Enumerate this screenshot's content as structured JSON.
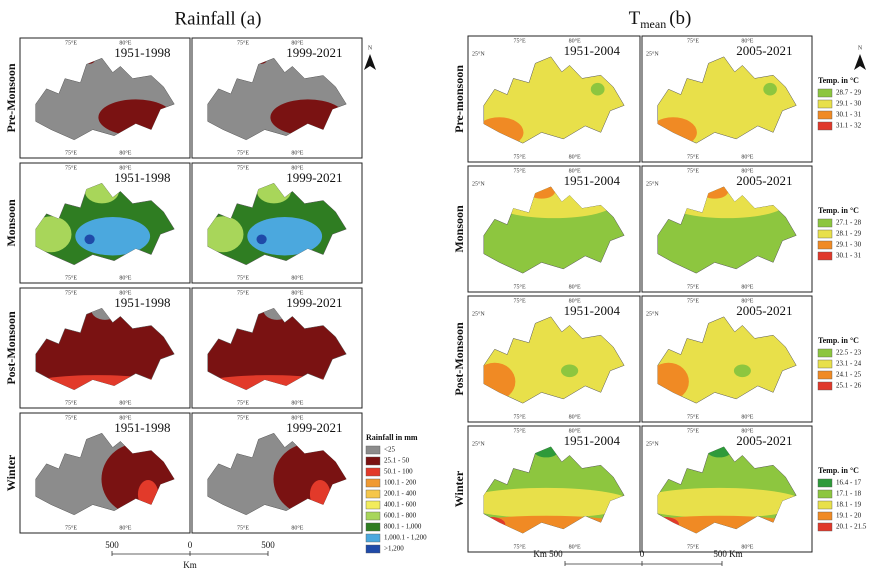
{
  "left": {
    "title": "Rainfall (a)",
    "seasons": [
      "Pre-Monsoon",
      "Monsoon",
      "Post-Monsoon",
      "Winter"
    ],
    "periods": [
      "1951-1998",
      "1999-2021"
    ],
    "legend": {
      "title": "Rainfall in mm",
      "entries": [
        {
          "label": "<25",
          "color": "#8c8c8c"
        },
        {
          "label": "25.1 - 50",
          "color": "#7a1212"
        },
        {
          "label": "50.1 - 100",
          "color": "#e23a2a"
        },
        {
          "label": "100.1 - 200",
          "color": "#f09a32"
        },
        {
          "label": "200.1 - 400",
          "color": "#f5c64a"
        },
        {
          "label": "400.1 - 600",
          "color": "#f2ec5c"
        },
        {
          "label": "600.1 - 800",
          "color": "#a8d65a"
        },
        {
          "label": "800.1 - 1,000",
          "color": "#2f7d22"
        },
        {
          "label": "1,000.1 - 1,200",
          "color": "#4ba8de"
        },
        {
          "label": ">1,200",
          "color": "#1f4aa8"
        }
      ]
    },
    "scale": [
      "500",
      "0",
      "500",
      "Km"
    ]
  },
  "right": {
    "title": {
      "symbol": "T",
      "subscript": "mean",
      "suffix": "(b)"
    },
    "seasons": [
      "Pre-monsoon",
      "Monsoon",
      "Post-Monsoon",
      "Winter"
    ],
    "periods": [
      "1951-2004",
      "2005-2021"
    ],
    "legends": [
      {
        "title": "Temp. in °C",
        "entries": [
          {
            "label": "28.7 - 29",
            "color": "#8dc63f"
          },
          {
            "label": "29.1 - 30",
            "color": "#e8e04a"
          },
          {
            "label": "30.1 - 31",
            "color": "#f08a24"
          },
          {
            "label": "31.1 - 32",
            "color": "#e0392b"
          }
        ]
      },
      {
        "title": "Temp. in °C",
        "entries": [
          {
            "label": "27.1 - 28",
            "color": "#8dc63f"
          },
          {
            "label": "28.1 - 29",
            "color": "#e8e04a"
          },
          {
            "label": "29.1 - 30",
            "color": "#f08a24"
          },
          {
            "label": "30.1 - 31",
            "color": "#e0392b"
          }
        ]
      },
      {
        "title": "Temp. in °C",
        "entries": [
          {
            "label": "22.5 - 23",
            "color": "#8dc63f"
          },
          {
            "label": "23.1 - 24",
            "color": "#e8e04a"
          },
          {
            "label": "24.1 - 25",
            "color": "#f08a24"
          },
          {
            "label": "25.1 - 26",
            "color": "#e0392b"
          }
        ]
      },
      {
        "title": "Temp. in °C",
        "entries": [
          {
            "label": "16.4 - 17",
            "color": "#2e9a3a"
          },
          {
            "label": "17.1 - 18",
            "color": "#8dc63f"
          },
          {
            "label": "18.1 - 19",
            "color": "#e8e04a"
          },
          {
            "label": "19.1 - 20",
            "color": "#f08a24"
          },
          {
            "label": "20.1 - 21.5",
            "color": "#e0392b"
          }
        ]
      }
    ],
    "scale": [
      "Km 500",
      "0",
      "500 Km"
    ]
  },
  "coords": {
    "lon": [
      "75°E",
      "80°E"
    ],
    "lat": "25°N"
  },
  "north": "N"
}
